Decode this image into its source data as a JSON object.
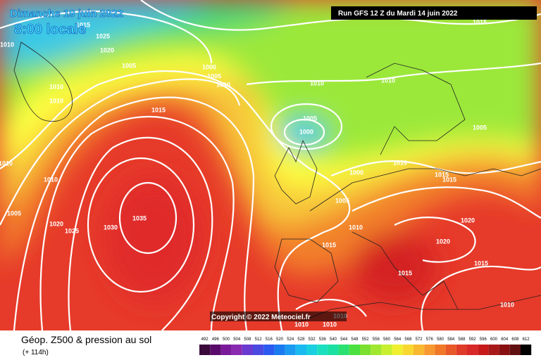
{
  "header": {
    "date": "Dimanche 19 juin 2022",
    "time": "8:00 locale",
    "run": "Run GFS 12 Z du Mardi 14 juin 2022"
  },
  "copyright": "Copyright © 2022 Meteociel.fr",
  "footer": {
    "title": "Géop. Z500 & pression au sol",
    "lead": "(+ 114h)"
  },
  "scale": [
    492,
    496,
    500,
    504,
    508,
    512,
    516,
    520,
    524,
    528,
    532,
    536,
    540,
    544,
    548,
    552,
    556,
    560,
    564,
    568,
    572,
    576,
    580,
    584,
    588,
    592,
    596,
    600,
    604,
    608,
    612
  ],
  "isobar_labels": [
    1015,
    1025,
    1020,
    1010,
    1005,
    1000,
    1005,
    1010,
    1010,
    1010,
    1015,
    1010,
    1010,
    1015,
    1005,
    1000,
    1005,
    1010,
    1010,
    1000,
    1010,
    1015,
    1015,
    1005,
    1005,
    1020,
    1025,
    1030,
    1035,
    1010,
    1020,
    1015,
    1020,
    1015,
    1015,
    1010,
    1010,
    1010,
    1010
  ]
}
